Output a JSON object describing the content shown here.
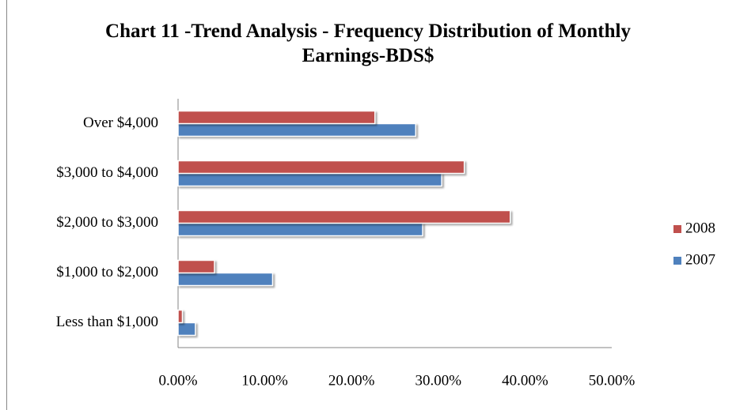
{
  "chart_data": {
    "type": "bar",
    "orientation": "horizontal",
    "title": "Chart 11 -Trend Analysis - Frequency Distribution of Monthly Earnings-BDS$",
    "categories": [
      "Less than $1,000",
      "$1,000 to $2,000",
      "$2,000 to $3,000",
      "$3,000 to $4,000",
      "Over $4,000"
    ],
    "series": [
      {
        "name": "2007",
        "color": "#4f81bd",
        "values": [
          2.0,
          10.9,
          28.2,
          30.4,
          27.4
        ]
      },
      {
        "name": "2008",
        "color": "#c0504d",
        "values": [
          0.5,
          4.2,
          38.3,
          33.0,
          22.7
        ]
      }
    ],
    "xlim": [
      0,
      50
    ],
    "xticks": [
      {
        "value": 0,
        "label": "0.00%"
      },
      {
        "value": 10,
        "label": "10.00%"
      },
      {
        "value": 20,
        "label": "20.00%"
      },
      {
        "value": 30,
        "label": "30.00%"
      },
      {
        "value": 40,
        "label": "40.00%"
      },
      {
        "value": 50,
        "label": "50.00%"
      }
    ],
    "grid": false,
    "legend": "right"
  }
}
